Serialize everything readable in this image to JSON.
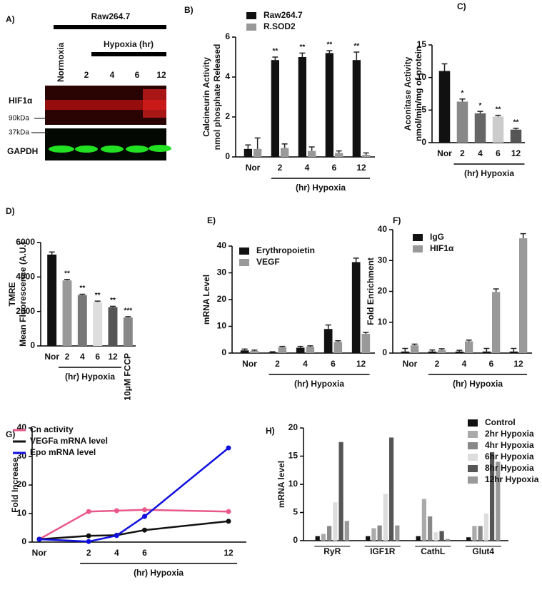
{
  "blot": {
    "panel": "A)",
    "group": "Raw264.7",
    "treatment": "Hypoxia (hr)",
    "lanes": [
      "Normoxia",
      "2",
      "4",
      "6",
      "12"
    ],
    "bands": [
      "HIF1α",
      "GAPDH"
    ],
    "markers": [
      "90kDa",
      "37kDa"
    ]
  },
  "chart_data": [
    {
      "type": "bar",
      "panel": "B)",
      "y_label": [
        "Calcineurin Activity",
        "nmol phosphate Released"
      ],
      "x_group_label": "(hr) Hypoxia",
      "categories": [
        "Nor",
        "2",
        "4",
        "6",
        "12"
      ],
      "series": [
        {
          "name": "Raw264.7",
          "color": "#111111",
          "values": [
            0.4,
            4.85,
            5.0,
            5.2,
            4.85
          ],
          "errors": [
            0.2,
            0.15,
            0.2,
            0.12,
            0.4
          ],
          "significance": [
            null,
            "**",
            "**",
            "**",
            "**"
          ]
        },
        {
          "name": "R.SOD2",
          "color": "#999999",
          "values": [
            0.4,
            0.45,
            0.3,
            0.2,
            0.1
          ],
          "errors": [
            0.55,
            0.2,
            0.2,
            0.1,
            0.1
          ]
        }
      ],
      "ylim": [
        0,
        6
      ],
      "yticks": [
        0,
        2,
        4,
        6
      ]
    },
    {
      "type": "bar",
      "panel": "C)",
      "y_label": [
        "Aconitase Activity",
        "nmol/min/mg of protein"
      ],
      "x_group_label": "(hr) Hypoxia",
      "categories": [
        "Nor",
        "2",
        "4",
        "6",
        "12"
      ],
      "values": [
        11,
        6.3,
        4.5,
        4.0,
        2.0
      ],
      "errors": [
        1.1,
        0.4,
        0.3,
        0.2,
        0.2
      ],
      "colors": [
        "#111111",
        "#888888",
        "#666666",
        "#cccccc",
        "#555555"
      ],
      "significance": [
        null,
        "*",
        "*",
        "**",
        "**"
      ],
      "ylim": [
        0,
        15
      ],
      "yticks": [
        0,
        5,
        10,
        15
      ]
    },
    {
      "type": "bar",
      "panel": "D)",
      "y_label": [
        "TMRE",
        "Mean Fluorescence (A.U.)"
      ],
      "x_group_label": "(hr) Hypoxia",
      "categories": [
        "Nor",
        "2",
        "4",
        "6",
        "12",
        "10μM FCCP"
      ],
      "values": [
        5300,
        3800,
        2950,
        2550,
        2250,
        1650
      ],
      "errors": [
        150,
        60,
        50,
        50,
        50,
        50
      ],
      "colors": [
        "#111111",
        "#999999",
        "#777777",
        "#dddddd",
        "#555555",
        "#888888"
      ],
      "significance": [
        null,
        "**",
        "**",
        "**",
        "**",
        "***"
      ],
      "ylim": [
        0,
        6000
      ],
      "yticks": [
        0,
        2000,
        4000,
        6000
      ]
    },
    {
      "type": "bar",
      "panel": "E)",
      "y_label": [
        "mRNA Level"
      ],
      "x_group_label": "(hr) Hypoxia",
      "categories": [
        "Nor",
        "2",
        "4",
        "6",
        "12"
      ],
      "series": [
        {
          "name": "Erythropoietin",
          "color": "#111111",
          "values": [
            1,
            0.3,
            2,
            9,
            34
          ],
          "errors": [
            0.5,
            0.2,
            0.5,
            1.5,
            1.5
          ]
        },
        {
          "name": "VEGF",
          "color": "#999999",
          "values": [
            0.8,
            2.2,
            2.4,
            4.2,
            7.2
          ],
          "errors": [
            0.3,
            0.3,
            0.3,
            0.4,
            0.5
          ]
        }
      ],
      "ylim": [
        0,
        40
      ],
      "yticks": [
        0,
        10,
        20,
        30,
        40
      ]
    },
    {
      "type": "bar",
      "panel": "F)",
      "y_label": [
        "Fold Enrichment"
      ],
      "x_group_label": "(hr) Hypoxia",
      "categories": [
        "Nor",
        "2",
        "4",
        "6",
        "12"
      ],
      "series": [
        {
          "name": "IgG",
          "color": "#111111",
          "values": [
            0.5,
            0.5,
            0.5,
            0.5,
            0.5
          ],
          "errors": [
            1,
            0.5,
            0.4,
            1,
            1
          ]
        },
        {
          "name": "HIF1α",
          "color": "#999999",
          "values": [
            2.5,
            1,
            3.8,
            19.8,
            37.2
          ],
          "errors": [
            0.4,
            0.4,
            0.4,
            1,
            1.5
          ]
        }
      ],
      "ylim": [
        0,
        40
      ],
      "yticks": [
        0,
        10,
        20,
        30,
        40
      ]
    },
    {
      "type": "line",
      "panel": "G)",
      "y_label": [
        "Fold Increase"
      ],
      "x_group_label": "(hr) Hypoxia",
      "categories": [
        "Nor",
        "2",
        "4",
        "6",
        "12"
      ],
      "series": [
        {
          "name": "Cn activity",
          "color": "#e8588a",
          "values": [
            1,
            10.7,
            11,
            11.3,
            10.7
          ]
        },
        {
          "name": "VEGFa mRNA level",
          "color": "#111111",
          "values": [
            1,
            2.2,
            2.4,
            4.2,
            7.3
          ]
        },
        {
          "name": "Epo mRNA level",
          "color": "#1010e0",
          "values": [
            1,
            0.2,
            2.3,
            9,
            33
          ]
        }
      ],
      "ylim": [
        0,
        40
      ],
      "yticks": [
        0,
        10,
        20,
        30,
        40
      ]
    },
    {
      "type": "bar",
      "panel": "H)",
      "y_label": [
        "mRNA level"
      ],
      "categories": [
        "RyR",
        "IGF1R",
        "CathL",
        "Glut4"
      ],
      "series": [
        {
          "name": "Control",
          "color": "#111111",
          "values": [
            0.8,
            0.8,
            0.8,
            0.6
          ]
        },
        {
          "name": "2hr Hypoxia",
          "color": "#aaaaaa",
          "values": [
            1.2,
            2.2,
            7.4,
            2.6
          ]
        },
        {
          "name": "4hr Hypoxia",
          "color": "#888888",
          "values": [
            2.6,
            2.7,
            4.3,
            2.6
          ]
        },
        {
          "name": "6hr Hypoxia",
          "color": "#dddddd",
          "values": [
            6.8,
            8.3,
            1.5,
            4.8
          ]
        },
        {
          "name": "8hr Hypoxia",
          "color": "#555555",
          "values": [
            17.5,
            18.3,
            1.7,
            15.7
          ]
        },
        {
          "name": "12hr Hypoxia",
          "color": "#999999",
          "values": [
            3.5,
            2.7,
            0.3,
            14.0
          ]
        }
      ],
      "ylim": [
        0,
        20
      ],
      "yticks": [
        0,
        5,
        10,
        15,
        20
      ]
    }
  ]
}
